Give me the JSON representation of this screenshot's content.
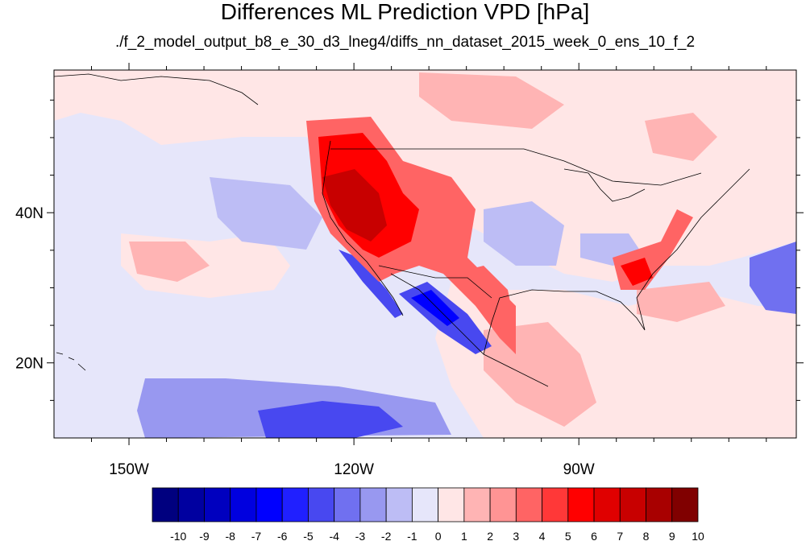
{
  "title": "Differences ML Prediction VPD [hPa]",
  "subtitle": "./f_2_model_output_b8_e_30_d3_lneg4/diffs_nn_dataset_2015_week_0_ens_10_f_2",
  "map": {
    "lon_range": [
      -160,
      -61
    ],
    "lat_range": [
      10,
      59
    ],
    "lon_ticks": [
      {
        "value": -150,
        "label": "150W"
      },
      {
        "value": -120,
        "label": "120W"
      },
      {
        "value": -90,
        "label": "90W"
      }
    ],
    "lat_ticks": [
      {
        "value": 40,
        "label": "40N"
      },
      {
        "value": 20,
        "label": "20N"
      }
    ],
    "ocean_color": "#e6e6fa"
  },
  "colorbar": {
    "labels": [
      "-10",
      "-9",
      "-8",
      "-7",
      "-6",
      "-5",
      "-4",
      "-3",
      "-2",
      "-1",
      "0",
      "1",
      "2",
      "3",
      "4",
      "5",
      "6",
      "7",
      "8",
      "9",
      "10"
    ],
    "colors": [
      "#00007f",
      "#0000a0",
      "#0000bf",
      "#0000df",
      "#0000ff",
      "#2020ff",
      "#4848f0",
      "#7070f0",
      "#9898f0",
      "#bdbdf5",
      "#e6e6fa",
      "#ffe6e6",
      "#ffb4b4",
      "#ff9494",
      "#ff6464",
      "#ff3838",
      "#ff0000",
      "#e00000",
      "#c80000",
      "#a80000",
      "#800000"
    ]
  }
}
